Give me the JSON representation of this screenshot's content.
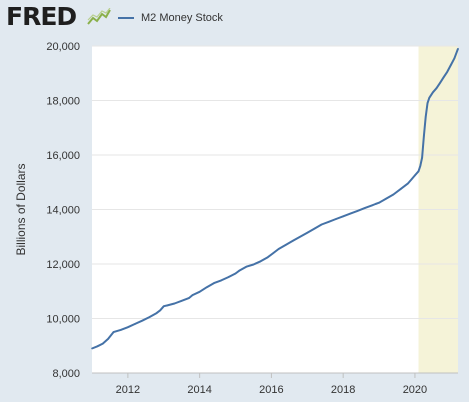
{
  "brand": {
    "logo_text": "FRED"
  },
  "legend": {
    "label": "M2 Money Stock",
    "color": "#4572a7"
  },
  "colors": {
    "background": "#e1e9f0",
    "plot_bg": "#ffffff",
    "line": "#4572a7",
    "recession": "#f5f3d8",
    "grid": "#e6e6e6"
  },
  "chart_data": {
    "type": "line",
    "title": "",
    "xlabel": "",
    "ylabel": "Billions of Dollars",
    "xlim": [
      2011.0,
      2021.2
    ],
    "ylim": [
      8000,
      20000
    ],
    "grid": true,
    "legend_position": "top",
    "y_ticks": [
      {
        "value": 8000,
        "label": "8,000"
      },
      {
        "value": 10000,
        "label": "10,000"
      },
      {
        "value": 12000,
        "label": "12,000"
      },
      {
        "value": 14000,
        "label": "14,000"
      },
      {
        "value": 16000,
        "label": "16,000"
      },
      {
        "value": 18000,
        "label": "18,000"
      },
      {
        "value": 20000,
        "label": "20,000"
      }
    ],
    "x_ticks": [
      {
        "value": 2012,
        "label": "2012"
      },
      {
        "value": 2014,
        "label": "2014"
      },
      {
        "value": 2016,
        "label": "2016"
      },
      {
        "value": 2018,
        "label": "2018"
      },
      {
        "value": 2020,
        "label": "2020"
      }
    ],
    "shaded_regions": [
      {
        "from": 2020.1,
        "to": 2021.2
      }
    ],
    "series": [
      {
        "name": "M2 Money Stock",
        "x": [
          2011.0,
          2011.15,
          2011.3,
          2011.45,
          2011.6,
          2011.8,
          2012.0,
          2012.2,
          2012.4,
          2012.6,
          2012.8,
          2012.9,
          2013.0,
          2013.1,
          2013.3,
          2013.5,
          2013.7,
          2013.8,
          2014.0,
          2014.2,
          2014.4,
          2014.6,
          2014.8,
          2015.0,
          2015.1,
          2015.3,
          2015.5,
          2015.7,
          2015.9,
          2016.0,
          2016.2,
          2016.4,
          2016.6,
          2016.8,
          2017.0,
          2017.2,
          2017.4,
          2017.6,
          2017.8,
          2018.0,
          2018.2,
          2018.4,
          2018.6,
          2018.8,
          2018.9,
          2019.0,
          2019.2,
          2019.4,
          2019.6,
          2019.8,
          2019.9,
          2020.0,
          2020.1,
          2020.15,
          2020.2,
          2020.25,
          2020.3,
          2020.35,
          2020.4,
          2020.5,
          2020.6,
          2020.7,
          2020.8,
          2020.9,
          2021.0,
          2021.1,
          2021.2
        ],
        "y": [
          8900,
          8980,
          9080,
          9250,
          9500,
          9580,
          9680,
          9800,
          9920,
          10050,
          10200,
          10300,
          10450,
          10480,
          10550,
          10650,
          10750,
          10860,
          10980,
          11150,
          11300,
          11400,
          11520,
          11650,
          11750,
          11900,
          11980,
          12100,
          12250,
          12350,
          12550,
          12700,
          12850,
          13000,
          13150,
          13300,
          13450,
          13550,
          13650,
          13750,
          13850,
          13950,
          14050,
          14150,
          14200,
          14250,
          14400,
          14550,
          14750,
          14950,
          15100,
          15250,
          15400,
          15600,
          15900,
          16700,
          17400,
          17900,
          18100,
          18300,
          18450,
          18650,
          18850,
          19050,
          19300,
          19550,
          19900
        ]
      }
    ]
  }
}
